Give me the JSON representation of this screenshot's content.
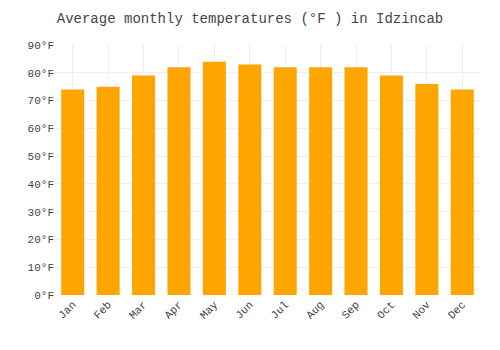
{
  "chart_data": {
    "type": "bar",
    "title": "Average monthly temperatures (°F ) in Idzincab",
    "categories": [
      "Jan",
      "Feb",
      "Mar",
      "Apr",
      "May",
      "Jun",
      "Jul",
      "Aug",
      "Sep",
      "Oct",
      "Nov",
      "Dec"
    ],
    "values": [
      74,
      75,
      79,
      82,
      84,
      83,
      82,
      82,
      82,
      79,
      76,
      74
    ],
    "color": "#FFA500",
    "ylim": [
      0,
      90
    ],
    "yticks": [
      {
        "value": 0,
        "label": "0°F"
      },
      {
        "value": 10,
        "label": "10°F"
      },
      {
        "value": 20,
        "label": "20°F"
      },
      {
        "value": 30,
        "label": "30°F"
      },
      {
        "value": 40,
        "label": "40°F"
      },
      {
        "value": 50,
        "label": "50°F"
      },
      {
        "value": 60,
        "label": "60°F"
      },
      {
        "value": 70,
        "label": "70°F"
      },
      {
        "value": 80,
        "label": "80°F"
      },
      {
        "value": 90,
        "label": "90°F"
      }
    ],
    "grid": true
  }
}
